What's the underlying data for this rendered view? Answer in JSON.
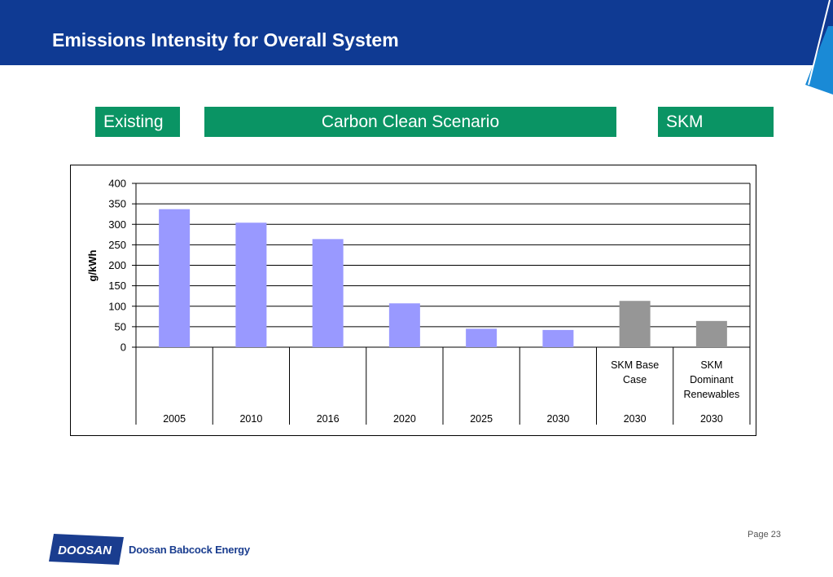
{
  "header": {
    "title": "Emissions Intensity for Overall System"
  },
  "labels": {
    "existing": "Existing",
    "carbon_clean": "Carbon Clean Scenario",
    "skm": "SKM"
  },
  "footer": {
    "page": "Page 23",
    "company": "Doosan Babcock Energy",
    "logo_text": "DOOSAN"
  },
  "colors": {
    "header_bg": "#0f3a93",
    "label_bg": "#0a9464",
    "bar_blue": "#9999ff",
    "bar_gray": "#969696",
    "accent": "#1a8ad6"
  },
  "chart_data": {
    "type": "bar",
    "ylabel": "g/kWh",
    "ylim": [
      0,
      400
    ],
    "yticks": [
      0,
      50,
      100,
      150,
      200,
      250,
      300,
      350,
      400
    ],
    "grid": true,
    "categories": [
      {
        "top": [],
        "bottom": "2005"
      },
      {
        "top": [],
        "bottom": "2010"
      },
      {
        "top": [],
        "bottom": "2016"
      },
      {
        "top": [],
        "bottom": "2020"
      },
      {
        "top": [],
        "bottom": "2025"
      },
      {
        "top": [],
        "bottom": "2030"
      },
      {
        "top": [
          "SKM Base",
          "Case"
        ],
        "bottom": "2030"
      },
      {
        "top": [
          "SKM",
          "Dominant",
          "Renewables"
        ],
        "bottom": "2030"
      }
    ],
    "values": [
      337,
      304,
      264,
      107,
      45,
      42,
      113,
      64
    ],
    "bar_colors": [
      "#9999ff",
      "#9999ff",
      "#9999ff",
      "#9999ff",
      "#9999ff",
      "#9999ff",
      "#969696",
      "#969696"
    ]
  }
}
